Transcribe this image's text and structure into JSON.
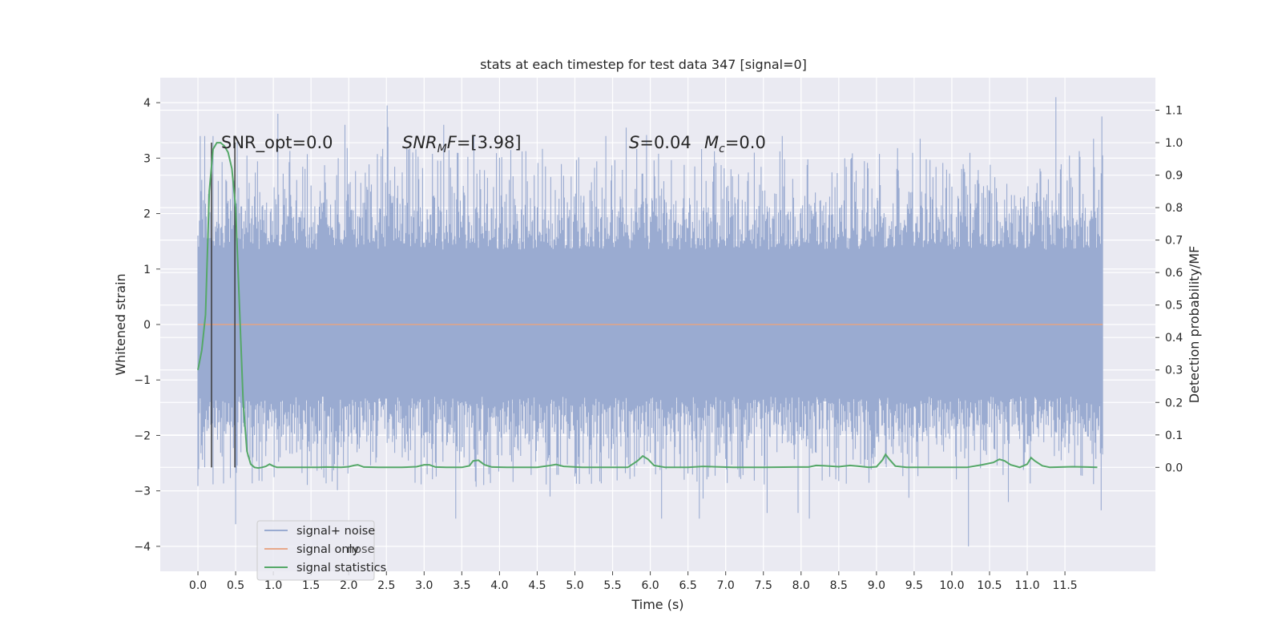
{
  "chart_data": {
    "type": "line",
    "title": "stats at each timestep for test data 347 [signal=0]",
    "xlabel": "Time (s)",
    "ylabel": "Whitened strain",
    "y2label": "Detection probability/MF",
    "xlim": [
      -0.5,
      12.7
    ],
    "ylim": [
      -4.45,
      4.45
    ],
    "y2lim": [
      -0.32,
      1.2
    ],
    "x_ticks": [
      "0.0",
      "0.5",
      "1.0",
      "1.5",
      "2.0",
      "2.5",
      "3.0",
      "3.5",
      "4.0",
      "4.5",
      "5.0",
      "5.5",
      "6.0",
      "6.5",
      "7.0",
      "7.5",
      "8.0",
      "8.5",
      "9.0",
      "9.5",
      "10.0",
      "10.5",
      "11.0",
      "11.5"
    ],
    "y_ticks": [
      4,
      3,
      2,
      1,
      0,
      -1,
      -2,
      -3,
      -4
    ],
    "y2_ticks": [
      1.1,
      1.0,
      0.9,
      0.8,
      0.7,
      0.6,
      0.5,
      0.4,
      0.3,
      0.2,
      0.1,
      0.0
    ],
    "grid": true,
    "background": "#eaeaf2",
    "annotations": {
      "snr_opt": "SNR_opt=0.0",
      "snr_mf_main": "SNR",
      "snr_mf_sub": "M",
      "snr_mf_rest": "F=[3.98]",
      "s_main": "S",
      "s_rest": "=0.04",
      "mc_main": "M",
      "mc_sub": "c",
      "mc_rest": "=0.0"
    },
    "vlines_x": [
      0.18,
      0.49
    ],
    "series": [
      {
        "name": "signal+ noise",
        "color": "#9aabd1",
        "x_range": [
          0.0,
          12.0
        ],
        "extremes": [
          [
            0.03,
            3.4
          ],
          [
            0.09,
            3.4
          ],
          [
            0.2,
            3.4
          ],
          [
            0.52,
            3.3
          ],
          [
            1.06,
            3.8
          ],
          [
            1.95,
            3.6
          ],
          [
            2.51,
            3.95
          ],
          [
            3.26,
            3.6
          ],
          [
            3.66,
            3.4
          ],
          [
            5.41,
            3.4
          ],
          [
            5.68,
            3.55
          ],
          [
            7.75,
            3.4
          ],
          [
            9.58,
            3.35
          ],
          [
            11.38,
            4.1
          ],
          [
            11.88,
            3.35
          ],
          [
            11.99,
            3.75
          ],
          [
            0.5,
            -3.6
          ],
          [
            3.42,
            -3.5
          ],
          [
            4.67,
            -3.1
          ],
          [
            6.15,
            -3.5
          ],
          [
            6.65,
            -3.5
          ],
          [
            7.55,
            -3.4
          ],
          [
            7.96,
            -3.4
          ],
          [
            8.11,
            -3.5
          ],
          [
            10.22,
            -4.0
          ],
          [
            10.75,
            -3.2
          ],
          [
            11.98,
            -3.35
          ]
        ]
      },
      {
        "name": "signal only",
        "color": "#dd8452",
        "y_const": 0.0
      },
      {
        "name": "signal statistics",
        "color": "#55a868",
        "axis": "right",
        "x": [
          0.0,
          0.05,
          0.1,
          0.15,
          0.2,
          0.25,
          0.3,
          0.35,
          0.4,
          0.45,
          0.5,
          0.55,
          0.6,
          0.65,
          0.7,
          0.75,
          0.8,
          0.85,
          0.9,
          0.95,
          1.0,
          1.05,
          1.1,
          1.2,
          1.4,
          1.6,
          1.7,
          1.9,
          2.0,
          2.07,
          2.12,
          2.2,
          2.4,
          2.7,
          2.9,
          3.0,
          3.07,
          3.15,
          3.3,
          3.5,
          3.6,
          3.65,
          3.72,
          3.8,
          3.9,
          4.1,
          4.5,
          4.65,
          4.75,
          4.85,
          5.1,
          5.7,
          5.83,
          5.9,
          5.97,
          6.05,
          6.2,
          6.5,
          6.7,
          7.1,
          7.5,
          7.9,
          8.1,
          8.2,
          8.3,
          8.5,
          8.65,
          8.75,
          8.9,
          9.0,
          9.08,
          9.12,
          9.17,
          9.25,
          9.4,
          10.0,
          10.2,
          10.4,
          10.55,
          10.63,
          10.7,
          10.78,
          10.9,
          11.0,
          11.05,
          11.1,
          11.2,
          11.3,
          11.6,
          11.8,
          11.93
        ],
        "y": [
          0.3,
          0.36,
          0.47,
          0.85,
          0.98,
          1.0,
          1.0,
          0.99,
          0.97,
          0.92,
          0.8,
          0.5,
          0.2,
          0.05,
          0.01,
          0.0,
          -0.002,
          0.0,
          0.003,
          0.01,
          0.004,
          0.0,
          0.0,
          0.0,
          0.0,
          0.0,
          0.001,
          0.0,
          0.002,
          0.006,
          0.008,
          0.001,
          0.0,
          0.0,
          0.002,
          0.008,
          0.008,
          0.001,
          0.0,
          0.0,
          0.005,
          0.02,
          0.022,
          0.008,
          0.001,
          0.0,
          0.0,
          0.005,
          0.009,
          0.003,
          0.0,
          0.0,
          0.02,
          0.035,
          0.025,
          0.006,
          0.0,
          0.0,
          0.003,
          0.0,
          0.0,
          0.001,
          0.001,
          0.006,
          0.005,
          0.002,
          0.006,
          0.004,
          0.0,
          0.002,
          0.023,
          0.04,
          0.025,
          0.004,
          0.0,
          0.0,
          0.0,
          0.008,
          0.015,
          0.025,
          0.02,
          0.008,
          0.0,
          0.01,
          0.03,
          0.02,
          0.005,
          0.0,
          0.002,
          0.001,
          0.0
        ]
      }
    ],
    "legend": {
      "placement": "lower-left",
      "entries": [
        "signal+ noise",
        "signal only",
        "signal statistics"
      ],
      "ghost_text": "nose"
    }
  }
}
